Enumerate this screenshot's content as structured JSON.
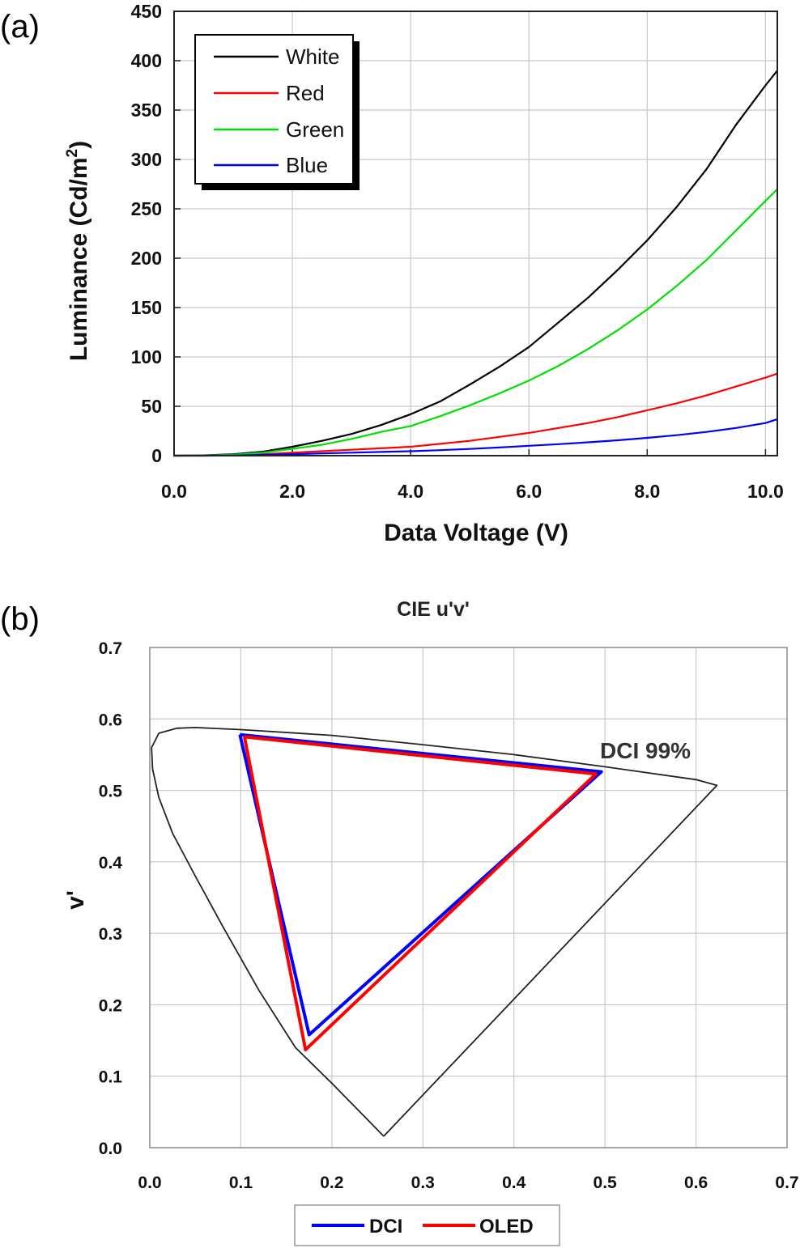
{
  "figure": {
    "label_a": "(a)",
    "label_b": "(b)"
  },
  "chart_data": [
    {
      "type": "line",
      "title": "",
      "xlabel": "Data Voltage (V)",
      "ylabel_main": "Luminance (Cd/m",
      "ylabel_sup": "2",
      "ylabel_close": ")",
      "xlim": [
        0,
        10.2
      ],
      "ylim": [
        0,
        450
      ],
      "xticks": [
        0,
        2,
        4,
        6,
        8,
        10
      ],
      "xtick_labels": [
        "0.0",
        "2.0",
        "4.0",
        "6.0",
        "8.0",
        "10.0"
      ],
      "yticks": [
        0,
        50,
        100,
        150,
        200,
        250,
        300,
        350,
        400,
        450
      ],
      "ytick_labels": [
        "0",
        "50",
        "100",
        "150",
        "200",
        "250",
        "300",
        "350",
        "400",
        "450"
      ],
      "grid": true,
      "legend_position": "top-left",
      "x": [
        0,
        0.5,
        1,
        1.5,
        2,
        2.5,
        3,
        3.5,
        4,
        4.5,
        5,
        5.5,
        6,
        6.5,
        7,
        7.5,
        8,
        8.5,
        9,
        9.5,
        10,
        10.2
      ],
      "series": [
        {
          "name": "White",
          "color": "#000000",
          "values": [
            0,
            0.3,
            1.5,
            4,
            9,
            15,
            22,
            31,
            42,
            55,
            72,
            90,
            110,
            135,
            160,
            188,
            218,
            252,
            290,
            335,
            375,
            390
          ]
        },
        {
          "name": "Red",
          "color": "#ff0000",
          "values": [
            0,
            0,
            0.5,
            1.5,
            3,
            4.5,
            6,
            7.5,
            9,
            12,
            15,
            19,
            23,
            28,
            33,
            39,
            46,
            53,
            61,
            70,
            79,
            83
          ]
        },
        {
          "name": "Green",
          "color": "#00e000",
          "values": [
            0,
            0.2,
            1,
            3,
            7,
            11,
            17,
            24,
            30,
            40,
            51,
            63,
            76,
            91,
            108,
            127,
            148,
            172,
            198,
            228,
            258,
            270
          ]
        },
        {
          "name": "Blue",
          "color": "#0000ff",
          "values": [
            0,
            0,
            0.2,
            0.8,
            1.5,
            2.3,
            3,
            3.8,
            4.5,
            5.6,
            6.8,
            8.3,
            10,
            11.6,
            13.5,
            15.6,
            18,
            20.7,
            24,
            28,
            33,
            37
          ]
        }
      ]
    },
    {
      "type": "line",
      "title": "CIE u'v'",
      "xlabel": "",
      "ylabel": "v'",
      "xlim": [
        0,
        0.7
      ],
      "ylim": [
        0,
        0.7
      ],
      "xticks": [
        0,
        0.1,
        0.2,
        0.3,
        0.4,
        0.5,
        0.6,
        0.7
      ],
      "xtick_labels": [
        "0.0",
        "0.1",
        "0.2",
        "0.3",
        "0.4",
        "0.5",
        "0.6",
        "0.7"
      ],
      "yticks": [
        0,
        0.1,
        0.2,
        0.3,
        0.4,
        0.5,
        0.6,
        0.7
      ],
      "ytick_labels": [
        "0.0",
        "0.1",
        "0.2",
        "0.3",
        "0.4",
        "0.5",
        "0.6",
        "0.7"
      ],
      "grid": true,
      "legend_position": "bottom-center",
      "annotation": "DCI 99%",
      "locus": {
        "color": "#222222",
        "u": [
          0.257,
          0.25,
          0.2,
          0.16,
          0.12,
          0.08,
          0.05,
          0.025,
          0.01,
          0.003,
          0.002,
          0.01,
          0.03,
          0.05,
          0.1,
          0.2,
          0.3,
          0.4,
          0.5,
          0.6,
          0.623,
          0.257
        ],
        "v": [
          0.016,
          0.025,
          0.09,
          0.14,
          0.22,
          0.31,
          0.38,
          0.44,
          0.49,
          0.53,
          0.56,
          0.58,
          0.587,
          0.588,
          0.585,
          0.577,
          0.564,
          0.55,
          0.533,
          0.515,
          0.507,
          0.016
        ]
      },
      "series": [
        {
          "name": "DCI",
          "color": "#0000ff",
          "u": [
            0.099,
            0.496,
            0.175,
            0.099
          ],
          "v": [
            0.578,
            0.526,
            0.158,
            0.578
          ]
        },
        {
          "name": "OLED",
          "color": "#ff0000",
          "u": [
            0.104,
            0.49,
            0.171,
            0.104
          ],
          "v": [
            0.575,
            0.523,
            0.137,
            0.575
          ]
        }
      ]
    }
  ]
}
